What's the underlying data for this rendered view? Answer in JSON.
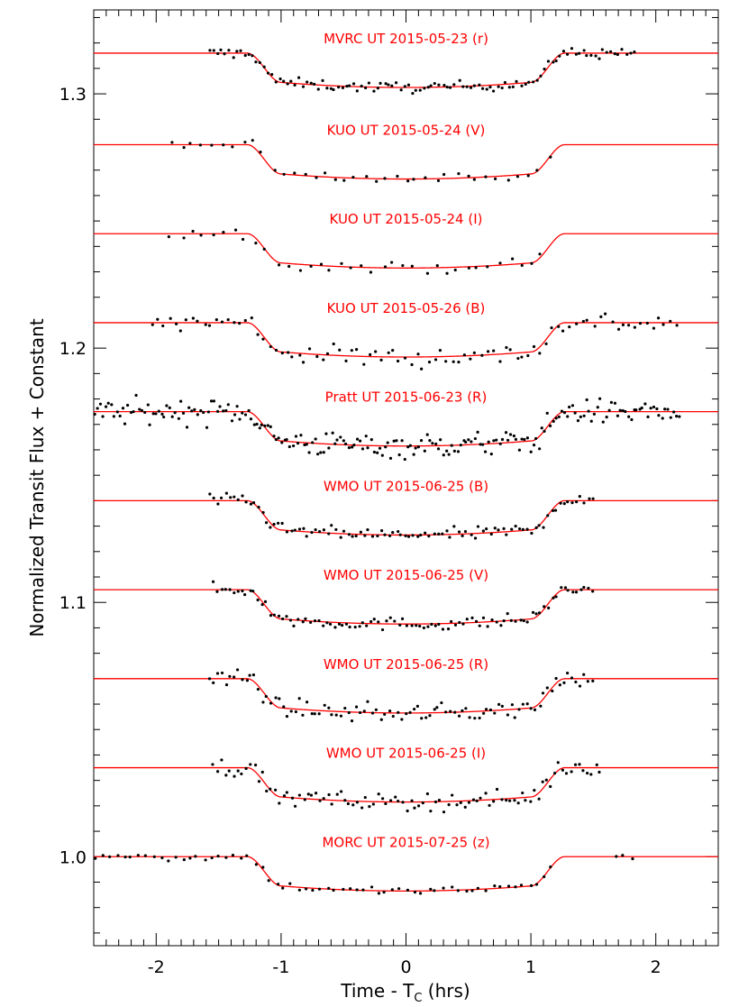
{
  "chart_data": {
    "type": "scatter",
    "title": "",
    "xlabel": "Time - T",
    "xlabel_sub": "C",
    "xlabel_suffix": " (hrs)",
    "ylabel": "Normalized Transit Flux + Constant",
    "xlim": [
      -2.5,
      2.5
    ],
    "ylim": [
      0.965,
      1.333
    ],
    "x_ticks": [
      -2,
      -1,
      0,
      1,
      2
    ],
    "x_tick_labels": [
      "-2",
      "-1",
      "0",
      "1",
      "2"
    ],
    "y_ticks": [
      1.0,
      1.1,
      1.2,
      1.3
    ],
    "y_tick_labels": [
      "1.0",
      "1.1",
      "1.2",
      "1.3"
    ],
    "grid": false,
    "legend": "none",
    "colors": {
      "model": "#ff0000",
      "data": "#000000",
      "axes": "#000000"
    },
    "transit_model": {
      "t1": -1.27,
      "t2": -1.0,
      "t3": 1.0,
      "t4": 1.27,
      "depth_center": 0.0135,
      "depth_edge": 0.0115
    },
    "series": [
      {
        "name": "MVRC UT 2015-05-23 (r)",
        "baseline": 1.316,
        "x_range": [
          -1.58,
          1.85
        ],
        "n_points": 110,
        "scatter": 0.0015
      },
      {
        "name": "KUO UT 2015-05-24 (V)",
        "baseline": 1.28,
        "x_range": [
          -1.9,
          1.2
        ],
        "n_points": 38,
        "scatter": 0.0015
      },
      {
        "name": "KUO UT 2015-05-24 (I)",
        "baseline": 1.245,
        "x_range": [
          -1.9,
          1.15
        ],
        "n_points": 36,
        "scatter": 0.0015
      },
      {
        "name": "KUO UT 2015-05-26 (B)",
        "baseline": 1.21,
        "x_range": [
          -2.05,
          2.2
        ],
        "n_points": 90,
        "scatter": 0.003
      },
      {
        "name": "Pratt UT 2015-06-23 (R)",
        "baseline": 1.175,
        "x_range": [
          -2.5,
          2.2
        ],
        "n_points": 210,
        "scatter": 0.0035
      },
      {
        "name": "WMO UT 2015-06-25 (B)",
        "baseline": 1.14,
        "x_range": [
          -1.58,
          1.52
        ],
        "n_points": 95,
        "scatter": 0.0018
      },
      {
        "name": "WMO UT 2015-06-25 (V)",
        "baseline": 1.105,
        "x_range": [
          -1.55,
          1.52
        ],
        "n_points": 95,
        "scatter": 0.0018
      },
      {
        "name": "WMO UT 2015-06-25 (R)",
        "baseline": 1.07,
        "x_range": [
          -1.58,
          1.52
        ],
        "n_points": 95,
        "scatter": 0.0025
      },
      {
        "name": "WMO UT 2015-06-25 (I)",
        "baseline": 1.035,
        "x_range": [
          -1.55,
          1.58
        ],
        "n_points": 95,
        "scatter": 0.0025
      },
      {
        "name": "MORC UT 2015-07-25 (z)",
        "baseline": 1.0,
        "x_range": [
          -2.5,
          1.85
        ],
        "n_points": 75,
        "scatter": 0.0012,
        "gap": [
          1.2,
          1.68
        ]
      }
    ]
  }
}
